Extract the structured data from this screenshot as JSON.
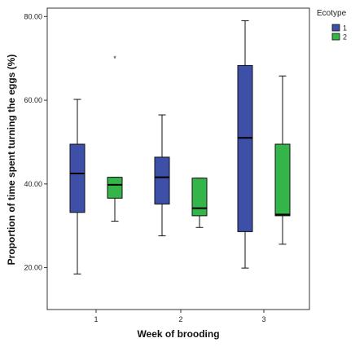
{
  "chart_data": {
    "type": "boxplot",
    "title": "",
    "xlabel": "Week of brooding",
    "ylabel": "Proportion of time spent turning the eggs (%)",
    "categories": [
      "1",
      "2",
      "3"
    ],
    "y_ticks": [
      "20.00",
      "40.00",
      "60.00",
      "80.00"
    ],
    "ylim": [
      10,
      82
    ],
    "grid": false,
    "legend": {
      "title": "Ecotype",
      "position": "top-right"
    },
    "series": [
      {
        "name": "1",
        "color": "#3d4fa6",
        "boxes": [
          {
            "category": "1",
            "min": 18.5,
            "q1": 33.2,
            "median": 42.5,
            "q3": 49.5,
            "max": 60.2
          },
          {
            "category": "2",
            "min": 27.6,
            "q1": 35.2,
            "median": 41.6,
            "q3": 46.4,
            "max": 56.5
          },
          {
            "category": "3",
            "min": 19.9,
            "q1": 28.6,
            "median": 51.0,
            "q3": 68.3,
            "max": 79.0
          }
        ],
        "outliers": []
      },
      {
        "name": "2",
        "color": "#33b54a",
        "boxes": [
          {
            "category": "1",
            "min": 31.1,
            "q1": 36.6,
            "median": 39.8,
            "q3": 41.6,
            "max": 41.6
          },
          {
            "category": "2",
            "min": 29.6,
            "q1": 32.4,
            "median": 34.2,
            "q3": 41.4,
            "max": 41.4
          },
          {
            "category": "3",
            "min": 25.6,
            "q1": 32.4,
            "median": 32.7,
            "q3": 49.5,
            "max": 65.8
          }
        ],
        "outliers": [
          {
            "category": "1",
            "value": 70.3,
            "marker": "*"
          }
        ]
      }
    ]
  }
}
